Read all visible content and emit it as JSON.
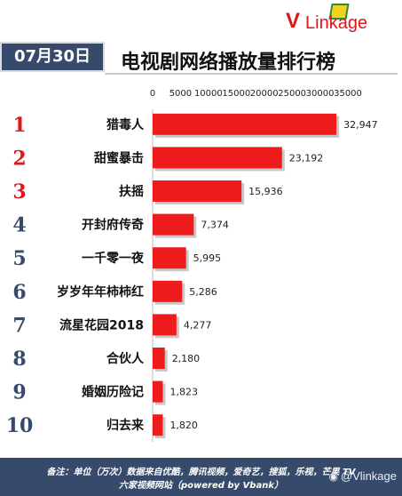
{
  "brand": {
    "logo_text_v": "V",
    "logo_text_rest": "Linkage"
  },
  "header": {
    "date": "07月30日",
    "title": "电视剧网络播放量排行榜"
  },
  "colors": {
    "bar": "#ee1c1c",
    "rank_top3": "#e1161b",
    "rank_other": "#364a6b",
    "header_bg": "#364a6b"
  },
  "chart_data": {
    "type": "bar",
    "orientation": "horizontal",
    "categories": [
      "猎毒人",
      "甜蜜暴击",
      "扶摇",
      "开封府传奇",
      "一千零一夜",
      "岁岁年年柿柿红",
      "流星花园2018",
      "合伙人",
      "婚姻历险记",
      "归去来"
    ],
    "ranks": [
      "1",
      "2",
      "3",
      "4",
      "5",
      "6",
      "7",
      "8",
      "9",
      "10"
    ],
    "values": [
      32947,
      23192,
      15936,
      7374,
      5995,
      5286,
      4277,
      2180,
      1823,
      1820
    ],
    "value_labels": [
      "32,947",
      "23,192",
      "15,936",
      "7,374",
      "5,995",
      "5,286",
      "4,277",
      "2,180",
      "1,823",
      "1,820"
    ],
    "xlim": [
      0,
      35000
    ],
    "xticks": [
      "0",
      "5000",
      "10000",
      "15000",
      "20000",
      "25000",
      "30000",
      "35000"
    ],
    "xtick_values": [
      0,
      5000,
      10000,
      15000,
      20000,
      25000,
      30000,
      35000
    ],
    "xaxis_position": "top",
    "grid": false,
    "legend": "none"
  },
  "footer": {
    "note_line1": "备注：单位（万次）数据来自优酷，腾讯视频，爱奇艺，搜狐，乐视，芒果 TV",
    "note_line2": "六家视频网站（powered by Vbank）"
  },
  "watermark": {
    "text": "@Vlinkage"
  }
}
